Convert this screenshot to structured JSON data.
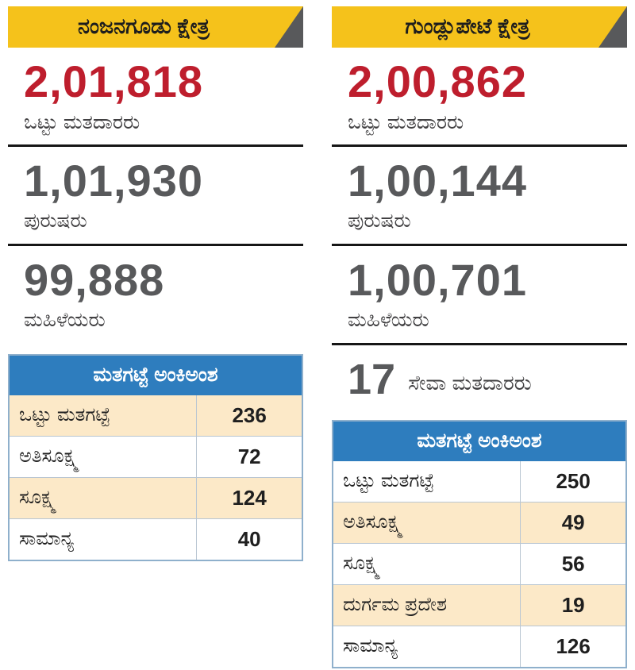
{
  "colors": {
    "banner_yellow": "#F5C21B",
    "fold_gray": "#58595B",
    "total_red": "#BE1E2D",
    "number_gray": "#58595B",
    "table_header_blue": "#2E7DBE",
    "row_cream": "#FCE9C8"
  },
  "left": {
    "title": "ನಂಜನಗೂಡು ಕ್ಷೇತ್ರ",
    "stats": [
      {
        "value": "2,01,818",
        "label": "ಒಟ್ಟು ಮತದಾರರು"
      },
      {
        "value": "1,01,930",
        "label": "ಪುರುಷರು"
      },
      {
        "value": "99,888",
        "label": "ಮಹಿಳೆಯರು"
      }
    ],
    "table": {
      "header": "ಮತಗಟ್ಟೆ ಅಂಕಿಅಂಶ",
      "rows": [
        {
          "label": "ಒಟ್ಟು ಮತಗಟ್ಟೆ",
          "value": "236"
        },
        {
          "label": "ಅತಿಸೂಕ್ಷ್ಮ",
          "value": "72"
        },
        {
          "label": "ಸೂಕ್ಷ್ಮ",
          "value": "124"
        },
        {
          "label": "ಸಾಮಾನ್ಯ",
          "value": "40"
        }
      ]
    }
  },
  "right": {
    "title": "ಗುಂಡ್ಲುಪೇಟೆ ಕ್ಷೇತ್ರ",
    "stats": [
      {
        "value": "2,00,862",
        "label": "ಒಟ್ಟು ಮತದಾರರು"
      },
      {
        "value": "1,00,144",
        "label": "ಪುರುಷರು"
      },
      {
        "value": "1,00,701",
        "label": "ಮಹಿಳೆಯರು"
      }
    ],
    "service_voters": {
      "value": "17",
      "label": "ಸೇವಾ ಮತದಾರರು"
    },
    "table": {
      "header": "ಮತಗಟ್ಟೆ ಅಂಕಿಅಂಶ",
      "rows": [
        {
          "label": "ಒಟ್ಟು ಮತಗಟ್ಟೆ",
          "value": "250"
        },
        {
          "label": "ಅತಿಸೂಕ್ಷ್ಮ",
          "value": "49"
        },
        {
          "label": "ಸೂಕ್ಷ್ಮ",
          "value": "56"
        },
        {
          "label": "ದುರ್ಗಮ ಪ್ರದೇಶ",
          "value": "19"
        },
        {
          "label": "ಸಾಮಾನ್ಯ",
          "value": "126"
        }
      ]
    }
  },
  "chart_data": [
    {
      "type": "table",
      "title": "ನಂಜನಗೂಡು ಕ್ಷೇತ್ರ",
      "stats": {
        "ಒಟ್ಟು ಮತದಾರರು": 201818,
        "ಪುರುಷರು": 101930,
        "ಮಹಿಳೆಯರು": 99888
      },
      "table_title": "ಮತಗಟ್ಟೆ ಅಂಕಿಅಂಶ",
      "categories": [
        "ಒಟ್ಟು ಮತಗಟ್ಟೆ",
        "ಅತಿಸೂಕ್ಷ್ಮ",
        "ಸೂಕ್ಷ್ಮ",
        "ಸಾಮಾನ್ಯ"
      ],
      "values": [
        236,
        72,
        124,
        40
      ]
    },
    {
      "type": "table",
      "title": "ಗುಂಡ್ಲುಪೇಟೆ ಕ್ಷೇತ್ರ",
      "stats": {
        "ಒಟ್ಟು ಮತದಾರರು": 200862,
        "ಪುರುಷರು": 100144,
        "ಮಹಿಳೆಯರು": 100701,
        "ಸೇವಾ ಮತದಾರರು": 17
      },
      "table_title": "ಮತಗಟ್ಟೆ ಅಂಕಿಅಂಶ",
      "categories": [
        "ಒಟ್ಟು ಮತಗಟ್ಟೆ",
        "ಅತಿಸೂಕ್ಷ್ಮ",
        "ಸೂಕ್ಷ್ಮ",
        "ದುರ್ಗಮ ಪ್ರದೇಶ",
        "ಸಾಮಾನ್ಯ"
      ],
      "values": [
        250,
        49,
        56,
        19,
        126
      ]
    }
  ]
}
